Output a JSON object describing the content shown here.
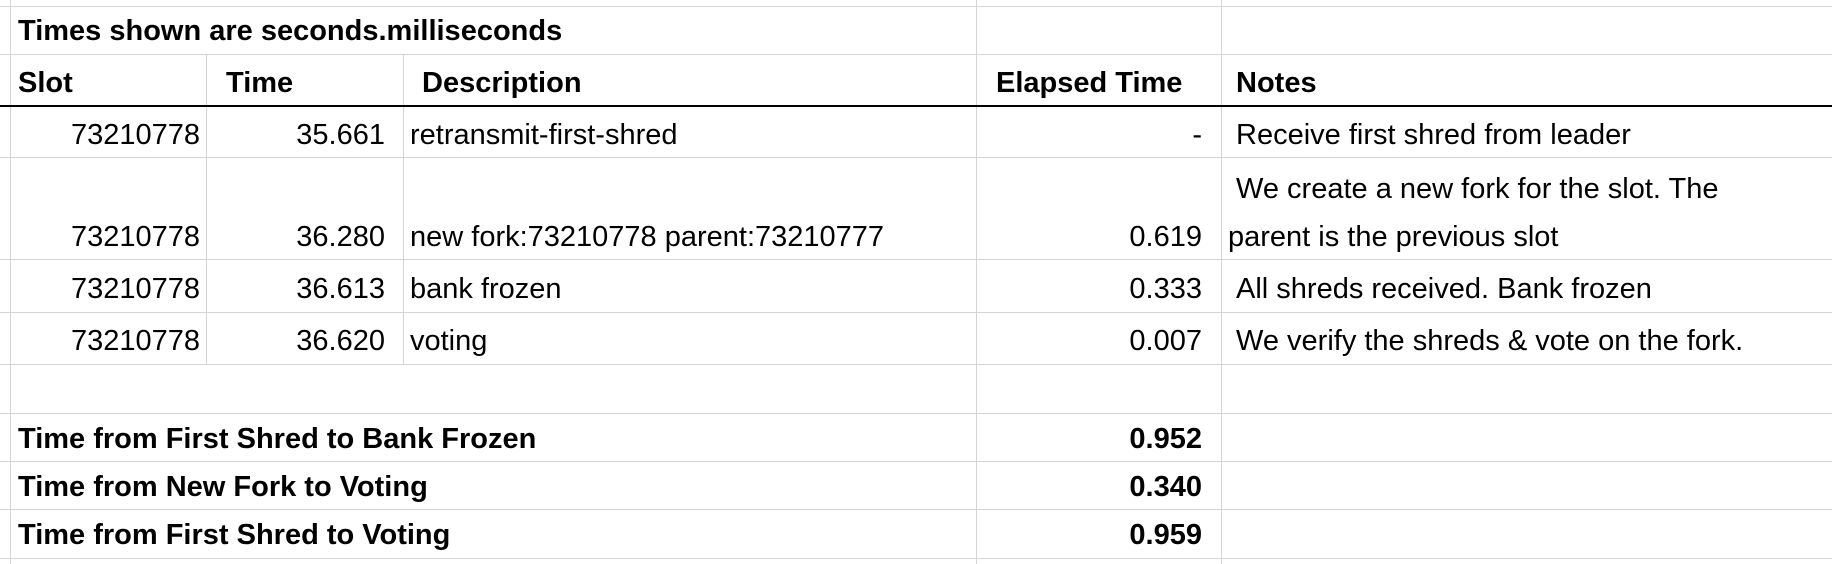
{
  "sheet": {
    "caption": "Times shown are seconds.milliseconds",
    "headers": {
      "slot": "Slot",
      "time": "Time",
      "description": "Description",
      "elapsed": "Elapsed Time",
      "notes": "Notes"
    },
    "rows": [
      {
        "slot": "73210778",
        "time": "35.661",
        "description": "retransmit-first-shred",
        "elapsed": "-",
        "notes": "Receive first shred from leader"
      },
      {
        "slot": "73210778",
        "time": "36.280",
        "description": "new fork:73210778 parent:73210777",
        "elapsed": "0.619",
        "notes_line1": "We create a new fork for the slot. The",
        "notes_line2": "parent is the previous slot"
      },
      {
        "slot": "73210778",
        "time": "36.613",
        "description": "bank frozen",
        "elapsed": "0.333",
        "notes": "All shreds received. Bank frozen"
      },
      {
        "slot": "73210778",
        "time": "36.620",
        "description": "voting",
        "elapsed": "0.007",
        "notes": "We verify the shreds & vote on the fork."
      }
    ],
    "summary": [
      {
        "label": "Time from First Shred to Bank Frozen",
        "value": "0.952"
      },
      {
        "label": "Time from New Fork to Voting",
        "value": "0.340"
      },
      {
        "label": "Time from First Shred to Voting",
        "value": "0.959"
      }
    ]
  }
}
